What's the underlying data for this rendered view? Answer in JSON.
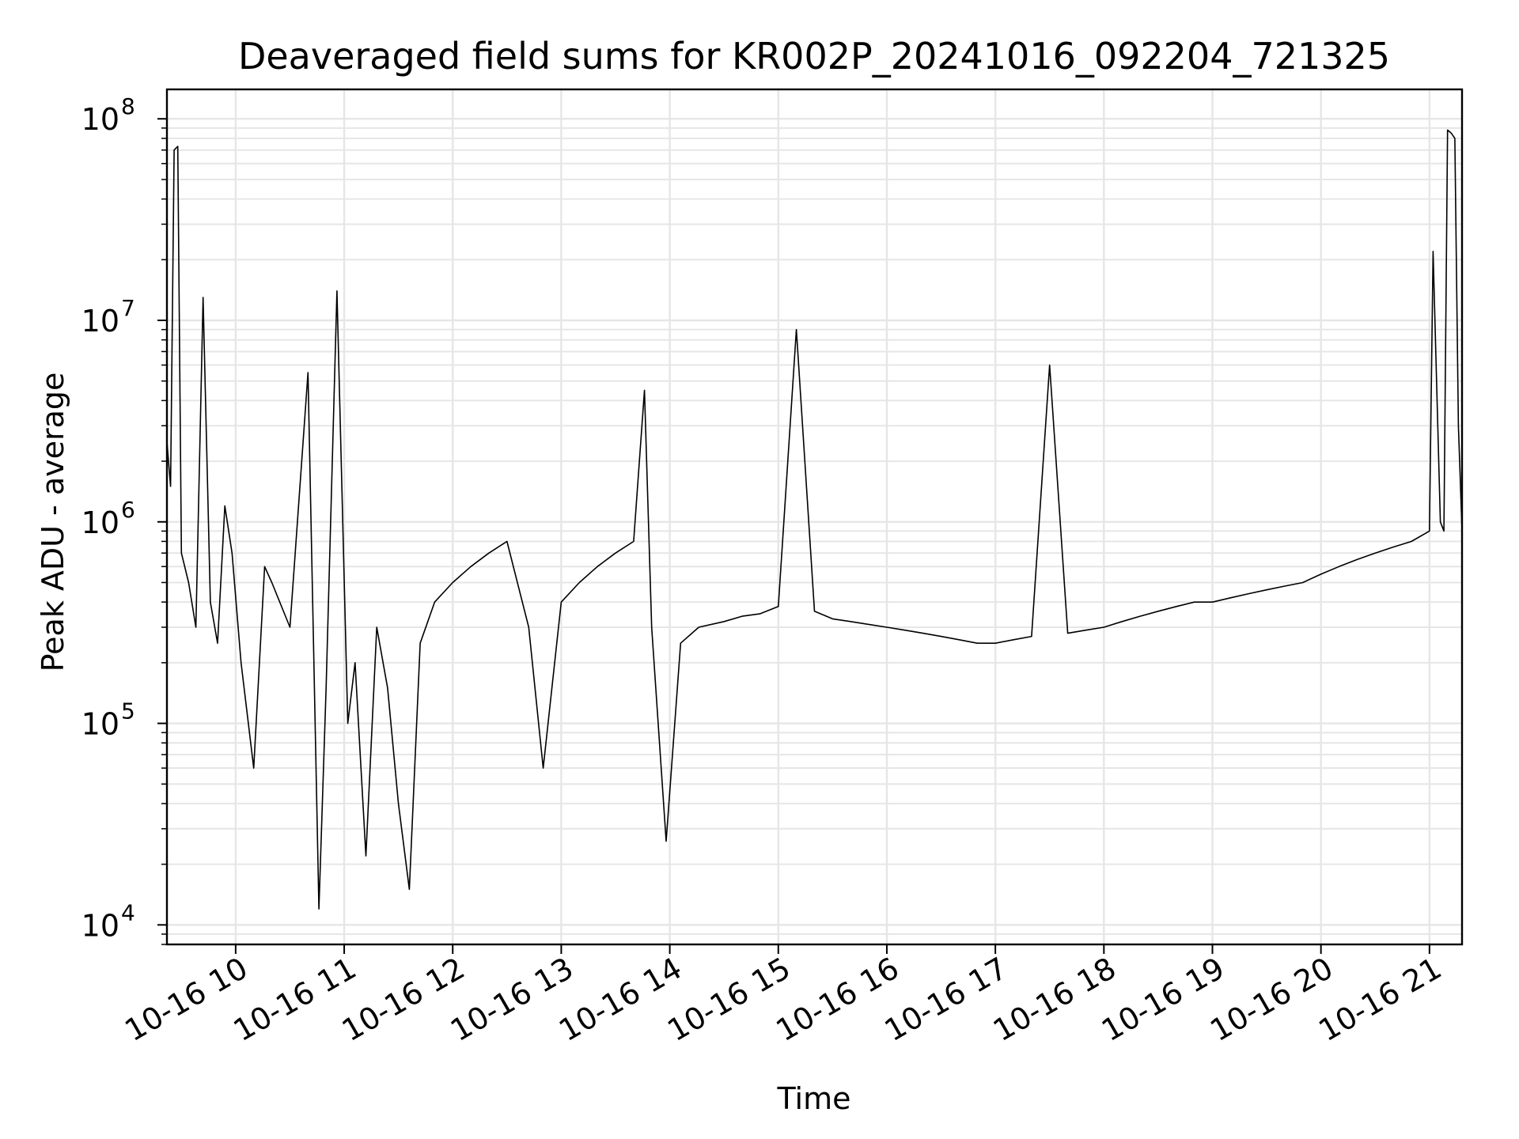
{
  "chart_data": {
    "type": "line",
    "title": "Deaveraged field sums for KR002P_20241016_092204_721325",
    "xlabel": "Time",
    "ylabel": "Peak ADU - average",
    "yscale": "log",
    "ylim": [
      8000,
      140000000
    ],
    "xlim": [
      "10-16 09:22",
      "10-16 21:18"
    ],
    "grid": true,
    "line_color": "#000000",
    "grid_color": "#e6e6e6",
    "x_ticks": [
      "10-16 10",
      "10-16 11",
      "10-16 12",
      "10-16 13",
      "10-16 14",
      "10-16 15",
      "10-16 16",
      "10-16 17",
      "10-16 18",
      "10-16 19",
      "10-16 20",
      "10-16 21"
    ],
    "y_ticks": [
      {
        "value": 10000,
        "base": "10",
        "exp": "4"
      },
      {
        "value": 100000,
        "base": "10",
        "exp": "5"
      },
      {
        "value": 1000000,
        "base": "10",
        "exp": "6"
      },
      {
        "value": 10000000,
        "base": "10",
        "exp": "7"
      },
      {
        "value": 100000000,
        "base": "10",
        "exp": "8"
      }
    ],
    "series": [
      {
        "x": [
          "10-16 09:22",
          "10-16 09:24",
          "10-16 09:26",
          "10-16 09:28",
          "10-16 09:30",
          "10-16 09:34",
          "10-16 09:38",
          "10-16 09:42",
          "10-16 09:46",
          "10-16 09:50",
          "10-16 09:54",
          "10-16 09:58",
          "10-16 10:03",
          "10-16 10:10",
          "10-16 10:16",
          "10-16 10:20",
          "10-16 10:30",
          "10-16 10:40",
          "10-16 10:46",
          "10-16 10:50",
          "10-16 10:56",
          "10-16 11:02",
          "10-16 11:06",
          "10-16 11:12",
          "10-16 11:18",
          "10-16 11:24",
          "10-16 11:30",
          "10-16 11:36",
          "10-16 11:42",
          "10-16 11:50",
          "10-16 12:00",
          "10-16 12:10",
          "10-16 12:20",
          "10-16 12:30",
          "10-16 12:42",
          "10-16 12:50",
          "10-16 13:00",
          "10-16 13:10",
          "10-16 13:20",
          "10-16 13:30",
          "10-16 13:40",
          "10-16 13:46",
          "10-16 13:50",
          "10-16 13:58",
          "10-16 14:06",
          "10-16 14:16",
          "10-16 14:30",
          "10-16 14:40",
          "10-16 14:50",
          "10-16 15:00",
          "10-16 15:10",
          "10-16 15:20",
          "10-16 15:30",
          "10-16 15:40",
          "10-16 15:50",
          "10-16 16:00",
          "10-16 16:10",
          "10-16 16:20",
          "10-16 16:30",
          "10-16 16:40",
          "10-16 16:50",
          "10-16 17:00",
          "10-16 17:10",
          "10-16 17:20",
          "10-16 17:30",
          "10-16 17:40",
          "10-16 17:50",
          "10-16 18:00",
          "10-16 18:10",
          "10-16 18:20",
          "10-16 18:30",
          "10-16 18:40",
          "10-16 18:50",
          "10-16 19:00",
          "10-16 19:10",
          "10-16 19:20",
          "10-16 19:30",
          "10-16 19:40",
          "10-16 19:50",
          "10-16 20:00",
          "10-16 20:10",
          "10-16 20:20",
          "10-16 20:30",
          "10-16 20:40",
          "10-16 20:50",
          "10-16 21:00",
          "10-16 21:02",
          "10-16 21:06",
          "10-16 21:08",
          "10-16 21:10",
          "10-16 21:12",
          "10-16 21:14",
          "10-16 21:16",
          "10-16 21:18"
        ],
        "y": [
          2500000,
          1500000,
          70000000,
          73000000,
          700000,
          500000,
          300000,
          13000000,
          400000,
          250000,
          1200000,
          700000,
          200000,
          60000,
          600000,
          500000,
          300000,
          5500000,
          12000,
          150000,
          14000000,
          100000,
          200000,
          22000,
          300000,
          150000,
          40000,
          15000,
          250000,
          400000,
          500000,
          600000,
          700000,
          800000,
          300000,
          60000,
          400000,
          500000,
          600000,
          700000,
          800000,
          4500000,
          300000,
          26000,
          250000,
          300000,
          320000,
          340000,
          350000,
          380000,
          9000000,
          360000,
          330000,
          320000,
          310000,
          300000,
          290000,
          280000,
          270000,
          260000,
          250000,
          250000,
          260000,
          270000,
          6000000,
          280000,
          290000,
          300000,
          320000,
          340000,
          360000,
          380000,
          400000,
          400000,
          420000,
          440000,
          460000,
          480000,
          500000,
          550000,
          600000,
          650000,
          700000,
          750000,
          800000,
          900000,
          22000000,
          1000000,
          900000,
          88000000,
          85000000,
          80000000,
          3000000,
          900000
        ]
      }
    ]
  }
}
